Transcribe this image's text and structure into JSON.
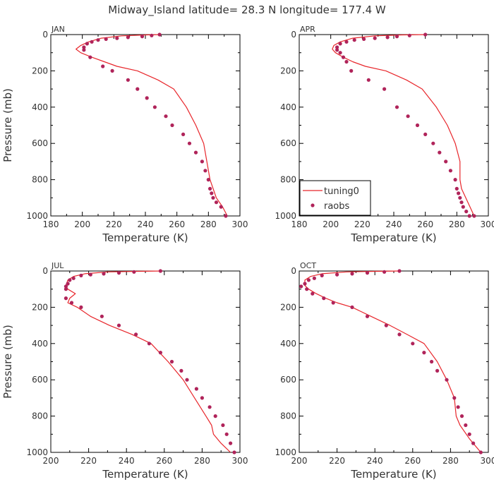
{
  "title": "Midway_Island  latitude= 28.3 N longitude= 177.4 W",
  "colors": {
    "model": "#e8262b",
    "obs": "#b0245a"
  },
  "legend": {
    "items": [
      "tuning0",
      "raobs"
    ],
    "placement": "lower-left of APR panel"
  },
  "chart_data": [
    {
      "type": "line",
      "panel": "JAN",
      "xlabel": "Temperature (K)",
      "ylabel": "Pressure (mb)",
      "xlim": [
        180,
        300
      ],
      "ylim": [
        1000,
        0
      ],
      "xticks": [
        "180",
        "200",
        "220",
        "240",
        "260",
        "280",
        "300"
      ],
      "yticks": [
        "0",
        "200",
        "400",
        "600",
        "800",
        "1000"
      ],
      "series": [
        {
          "name": "tuning0",
          "kind": "line",
          "x": [
            250,
            240,
            225,
            212,
            204,
            199,
            196,
            199,
            206,
            214,
            222,
            235,
            248,
            258,
            266,
            272,
            277,
            279,
            281,
            285,
            289,
            292
          ],
          "y": [
            0,
            2,
            7,
            20,
            40,
            60,
            80,
            100,
            125,
            150,
            175,
            200,
            250,
            300,
            400,
            500,
            600,
            700,
            800,
            900,
            950,
            1000
          ]
        },
        {
          "name": "raobs",
          "kind": "scatter",
          "x": [
            249,
            244,
            238,
            229,
            222,
            215,
            210,
            206,
            203,
            201,
            201,
            205,
            213,
            219,
            229,
            235,
            241,
            246,
            253,
            257,
            264,
            268,
            272,
            276,
            278,
            280,
            281,
            282,
            283,
            285,
            288,
            291
          ],
          "y": [
            0,
            5,
            10,
            15,
            20,
            25,
            30,
            40,
            50,
            70,
            85,
            125,
            175,
            200,
            250,
            300,
            350,
            400,
            450,
            500,
            550,
            600,
            650,
            700,
            750,
            800,
            850,
            875,
            900,
            925,
            950,
            1000
          ]
        }
      ]
    },
    {
      "type": "line",
      "panel": "APR",
      "xlabel": "Temperature (K)",
      "ylabel": "",
      "xlim": [
        180,
        300
      ],
      "ylim": [
        1000,
        0
      ],
      "xticks": [
        "180",
        "200",
        "220",
        "240",
        "260",
        "280",
        "300"
      ],
      "yticks": [
        "0",
        "200",
        "400",
        "600",
        "800",
        "1000"
      ],
      "series": [
        {
          "name": "tuning0",
          "kind": "line",
          "x": [
            260,
            245,
            228,
            214,
            206,
            202,
            201,
            203,
            208,
            214,
            222,
            235,
            248,
            258,
            267,
            274,
            279,
            282,
            282,
            283,
            287,
            291
          ],
          "y": [
            0,
            2,
            7,
            20,
            40,
            60,
            80,
            100,
            125,
            150,
            175,
            200,
            250,
            300,
            400,
            500,
            600,
            700,
            800,
            850,
            925,
            1000
          ]
        },
        {
          "name": "raobs",
          "kind": "scatter",
          "x": [
            260,
            250,
            242,
            236,
            228,
            221,
            215,
            210,
            206,
            204,
            204,
            206,
            208,
            210,
            213,
            224,
            234,
            242,
            249,
            255,
            260,
            265,
            269,
            273,
            276,
            279,
            280,
            281,
            282,
            283,
            284,
            286,
            288,
            291
          ],
          "y": [
            0,
            5,
            10,
            15,
            20,
            25,
            30,
            40,
            50,
            70,
            85,
            100,
            125,
            150,
            200,
            250,
            300,
            400,
            450,
            500,
            550,
            600,
            650,
            700,
            750,
            800,
            850,
            875,
            900,
            925,
            950,
            975,
            1000,
            1000
          ]
        }
      ]
    },
    {
      "type": "line",
      "panel": "JUL",
      "xlabel": "Temperature (K)",
      "ylabel": "Pressure (mb)",
      "xlim": [
        200,
        300
      ],
      "ylim": [
        1000,
        0
      ],
      "xticks": [
        "200",
        "220",
        "240",
        "260",
        "280",
        "300"
      ],
      "yticks": [
        "0",
        "200",
        "400",
        "600",
        "800",
        "1000"
      ],
      "series": [
        {
          "name": "tuning0",
          "kind": "line",
          "x": [
            259,
            245,
            230,
            218,
            212,
            209,
            208,
            209,
            213,
            210,
            209,
            214,
            221,
            231,
            243,
            253,
            262,
            270,
            276,
            282,
            285,
            286,
            290,
            295
          ],
          "y": [
            0,
            2,
            5,
            15,
            30,
            50,
            80,
            100,
            125,
            150,
            175,
            200,
            250,
            300,
            350,
            400,
            500,
            600,
            700,
            800,
            850,
            900,
            950,
            1000
          ]
        },
        {
          "name": "raobs",
          "kind": "scatter",
          "x": [
            258,
            244,
            236,
            228,
            221,
            216,
            212,
            210,
            209,
            208,
            208,
            208,
            211,
            216,
            227,
            236,
            245,
            252,
            258,
            264,
            269,
            272,
            277,
            280,
            284,
            287,
            291,
            293,
            295,
            297
          ],
          "y": [
            0,
            5,
            10,
            15,
            20,
            25,
            40,
            50,
            70,
            85,
            100,
            150,
            175,
            200,
            250,
            300,
            350,
            400,
            450,
            500,
            550,
            600,
            650,
            700,
            750,
            800,
            850,
            900,
            950,
            1000
          ]
        }
      ]
    },
    {
      "type": "line",
      "panel": "OCT",
      "xlabel": "Temperature (K)",
      "ylabel": "",
      "xlim": [
        200,
        300
      ],
      "ylim": [
        1000,
        0
      ],
      "xticks": [
        "200",
        "220",
        "240",
        "260",
        "280",
        "300"
      ],
      "yticks": [
        "0",
        "200",
        "400",
        "600",
        "800",
        "1000"
      ],
      "series": [
        {
          "name": "tuning0",
          "kind": "line",
          "x": [
            253,
            240,
            225,
            212,
            206,
            203,
            203,
            205,
            209,
            214,
            220,
            228,
            238,
            248,
            257,
            266,
            273,
            278,
            282,
            283,
            285,
            290,
            296
          ],
          "y": [
            0,
            2,
            5,
            15,
            30,
            50,
            80,
            100,
            125,
            150,
            175,
            200,
            250,
            300,
            350,
            400,
            500,
            600,
            700,
            800,
            850,
            925,
            1000
          ]
        },
        {
          "name": "raobs",
          "kind": "scatter",
          "x": [
            253,
            245,
            236,
            228,
            220,
            212,
            208,
            205,
            203,
            201,
            204,
            207,
            213,
            218,
            228,
            236,
            246,
            253,
            260,
            266,
            270,
            273,
            278,
            282,
            284,
            286,
            288,
            290,
            292,
            296
          ],
          "y": [
            0,
            5,
            10,
            15,
            20,
            25,
            40,
            50,
            70,
            85,
            100,
            125,
            150,
            175,
            200,
            250,
            300,
            350,
            400,
            450,
            500,
            550,
            600,
            700,
            750,
            800,
            850,
            900,
            950,
            1000
          ]
        }
      ]
    }
  ]
}
